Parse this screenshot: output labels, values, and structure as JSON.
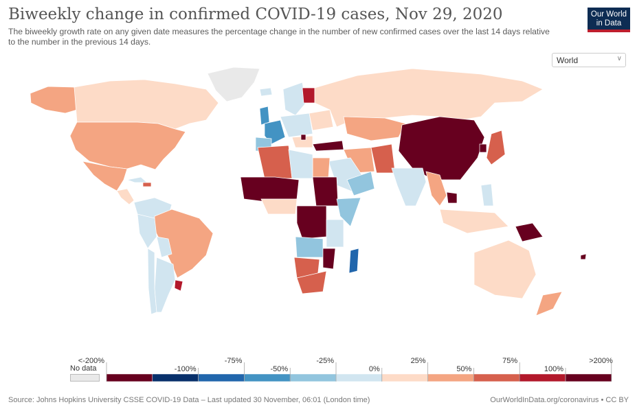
{
  "header": {
    "title": "Biweekly change in confirmed COVID-19 cases, Nov 29, 2020",
    "subtitle": "The biweekly growth rate on any given date measures the percentage change in the number of new confirmed cases over the last 14 days relative to the number in the previous 14 days.",
    "logo_line1": "Our World",
    "logo_line2": "in Data"
  },
  "region_select": {
    "selected": "World"
  },
  "legend": {
    "no_data_label": "No data",
    "bins": [
      {
        "color": "#67001f"
      },
      {
        "color": "#08306b"
      },
      {
        "color": "#2166ac"
      },
      {
        "color": "#4393c3"
      },
      {
        "color": "#92c5de"
      },
      {
        "color": "#d1e5f0"
      },
      {
        "color": "#fddbc7"
      },
      {
        "color": "#f4a582"
      },
      {
        "color": "#d6604d"
      },
      {
        "color": "#b2182b"
      },
      {
        "color": "#67001f"
      }
    ],
    "upper_labels": [
      "<-200%",
      "-75%",
      "-25%",
      "25%",
      "75%",
      ">200%"
    ],
    "lower_labels": [
      "-100%",
      "-50%",
      "0%",
      "50%",
      "100%"
    ]
  },
  "colors": {
    "no_data": "#e9e9e9",
    "very_high": "#67001f",
    "high": "#b2182b",
    "mid_high": "#d6604d",
    "low_high": "#f4a582",
    "slight_up": "#fddbc7",
    "slight_down": "#d1e5f0",
    "down": "#92c5de",
    "strong_down": "#4393c3",
    "very_strong_down": "#2166ac"
  },
  "footer": {
    "source": "Source: Johns Hopkins University CSSE COVID-19 Data – Last updated 30 November, 06:01 (London time)",
    "credit": "OurWorldInData.org/coronavirus • CC BY"
  }
}
